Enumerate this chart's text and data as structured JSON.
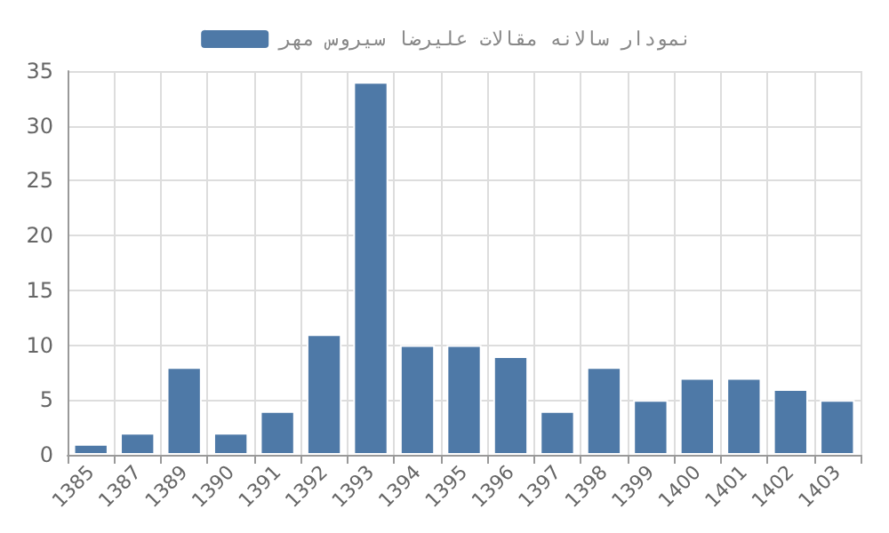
{
  "chart_data": {
    "type": "bar",
    "categories": [
      "1385",
      "1387",
      "1389",
      "1390",
      "1391",
      "1392",
      "1393",
      "1394",
      "1395",
      "1396",
      "1397",
      "1398",
      "1399",
      "1400",
      "1401",
      "1402",
      "1403"
    ],
    "series": [
      {
        "name": "نمودار سالانه مقالات علیرضا سیروس مهر",
        "color": "#4e79a7",
        "values": [
          1,
          2,
          8,
          2,
          4,
          11,
          34,
          10,
          10,
          9,
          4,
          8,
          5,
          7,
          7,
          6,
          5
        ]
      }
    ],
    "ylim": [
      0,
      35
    ],
    "yticks": [
      0,
      5,
      10,
      15,
      20,
      25,
      30,
      35
    ],
    "grid": true,
    "legend": "top"
  }
}
